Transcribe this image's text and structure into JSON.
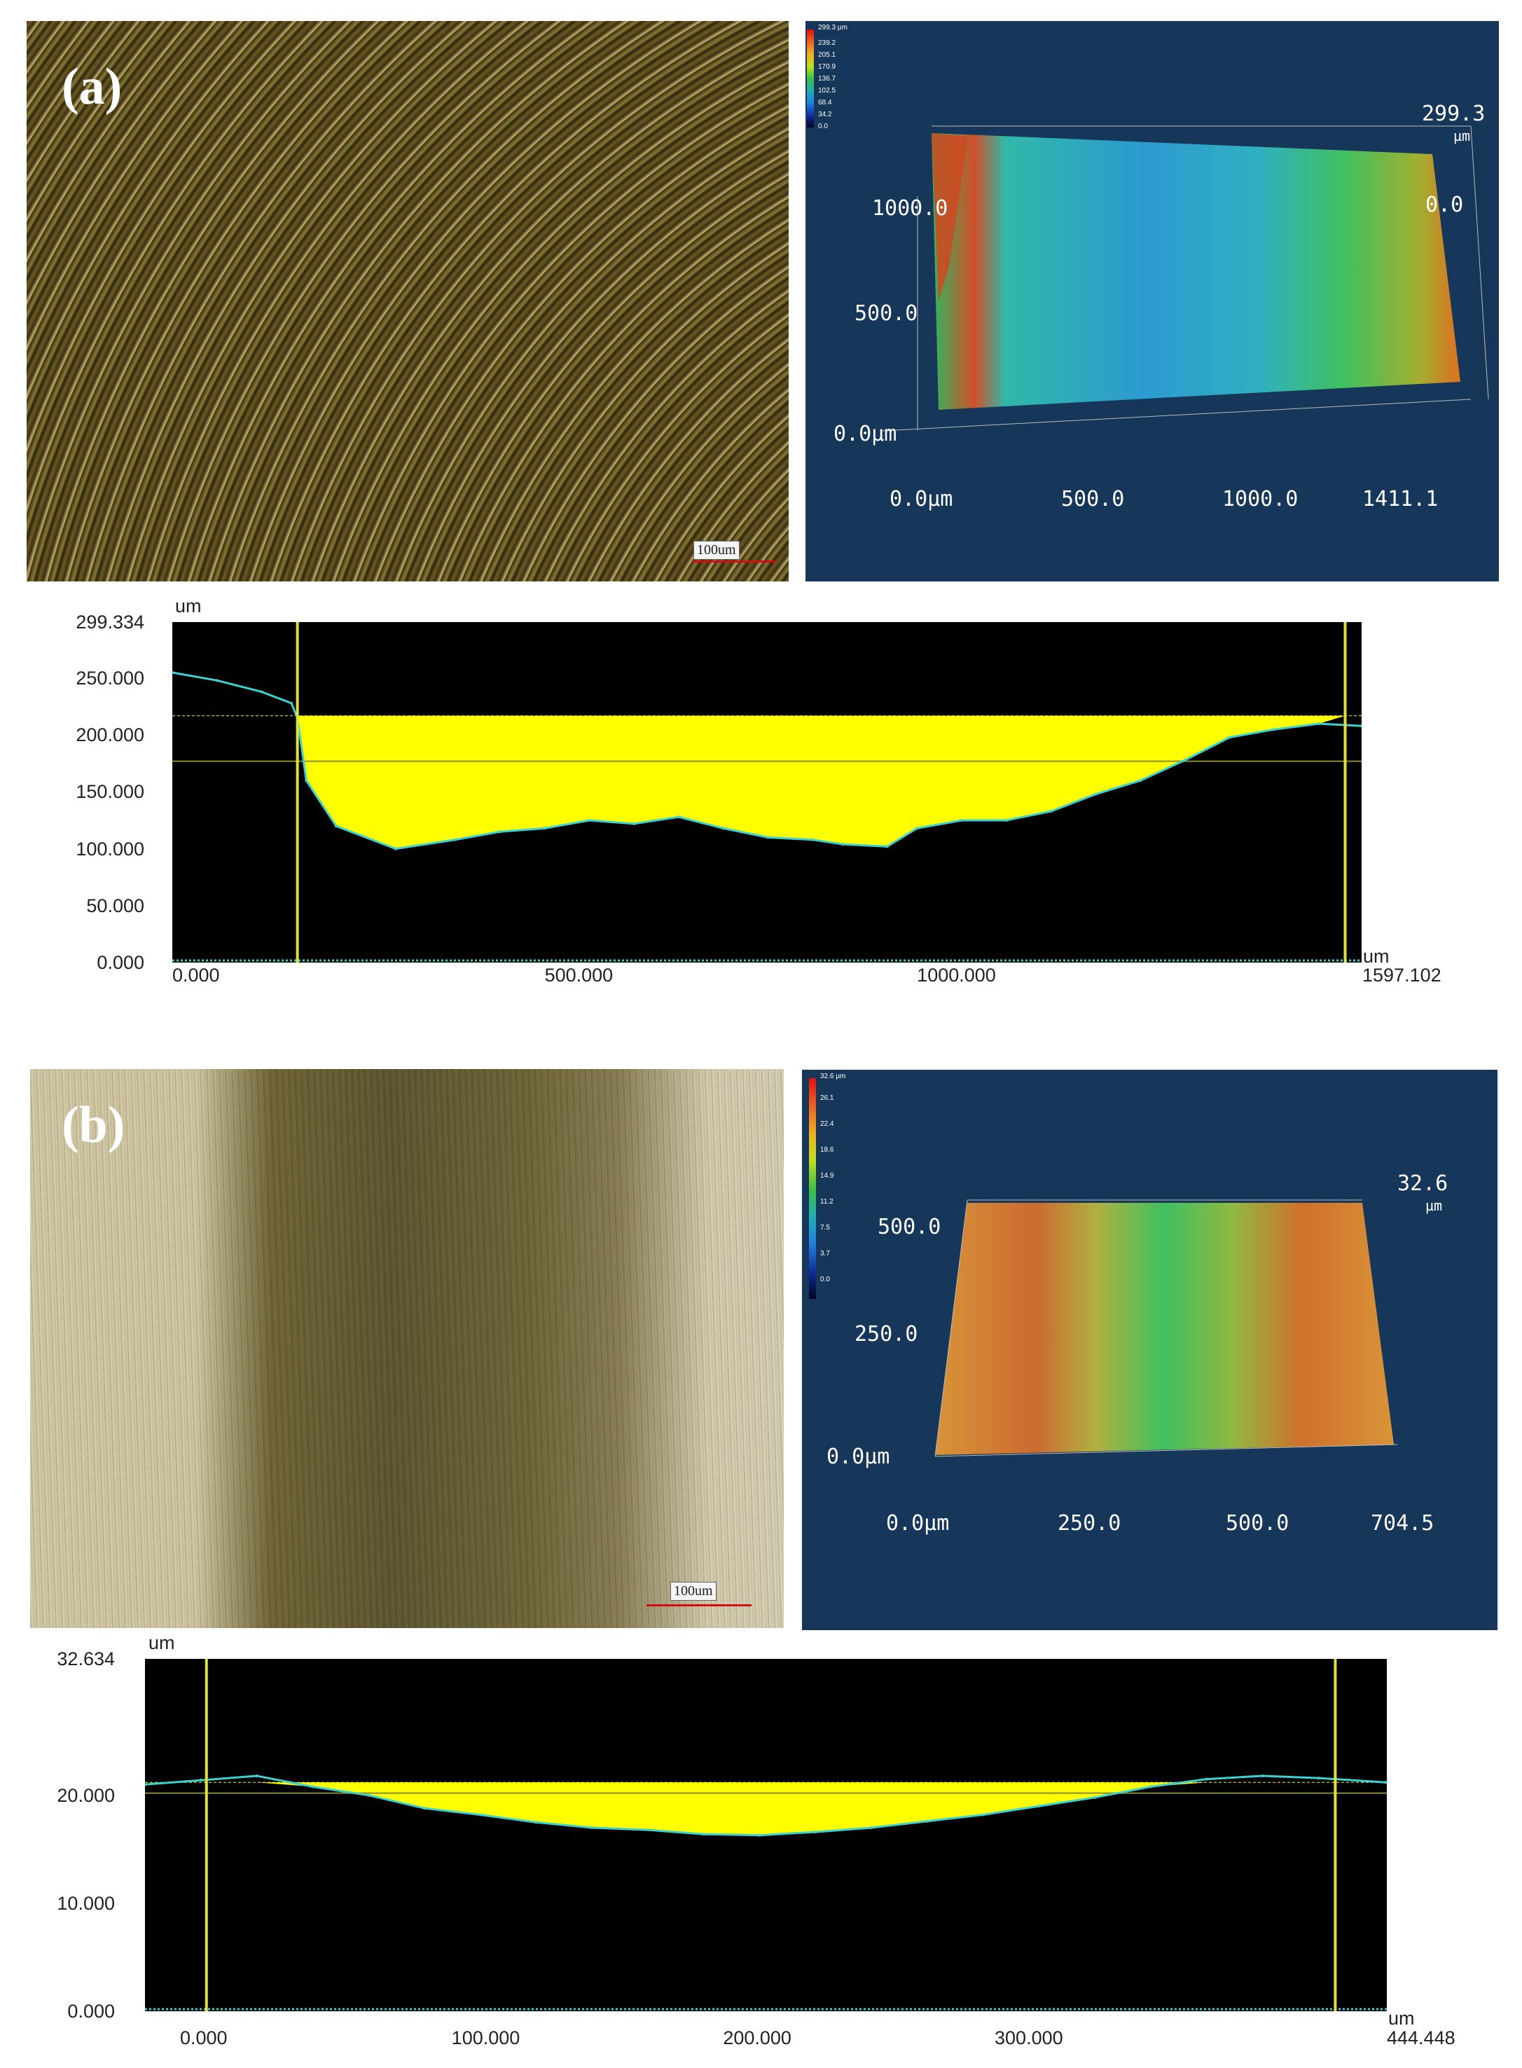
{
  "panel_a": {
    "label": "(a)",
    "micrograph": {
      "scale_bar": "100um"
    },
    "surface_3d": {
      "colorbar_title": "299.3 µm",
      "colorbar_ticks": [
        "239.2",
        "205.1",
        "170.9",
        "136.7",
        "102.5",
        "68.4",
        "34.2",
        "0.0"
      ],
      "z_max": "299.3",
      "z_unit": "µm",
      "z_min": "0.0",
      "y_labels": [
        "1000.0",
        "500.0",
        "0.0µm"
      ],
      "x_labels": [
        "0.0µm",
        "500.0",
        "1000.0",
        "1411.1"
      ]
    },
    "profile": {
      "y_unit": "um",
      "y_ticks": [
        "299.334",
        "250.000",
        "200.000",
        "150.000",
        "100.000",
        "50.000",
        "0.000"
      ],
      "x_ticks": [
        "0.000",
        "500.000",
        "1000.000",
        "1597.102"
      ],
      "x_unit": "um"
    }
  },
  "panel_b": {
    "label": "(b)",
    "micrograph": {
      "scale_bar": "100um"
    },
    "surface_3d": {
      "colorbar_title": "32.6 µm",
      "colorbar_ticks": [
        "26.1",
        "22.4",
        "18.6",
        "14.9",
        "11.2",
        "7.5",
        "3.7",
        "0.0"
      ],
      "z_max": "32.6",
      "z_unit": "µm",
      "y_labels": [
        "500.0",
        "250.0",
        "0.0µm"
      ],
      "x_labels": [
        "0.0µm",
        "250.0",
        "500.0",
        "704.5"
      ]
    },
    "profile": {
      "y_unit": "um",
      "y_ticks": [
        "32.634",
        "20.000",
        "10.000",
        "0.000"
      ],
      "x_ticks": [
        "0.000",
        "100.000",
        "200.000",
        "300.000",
        "444.448"
      ],
      "x_unit": "um"
    }
  },
  "colors": {
    "fill": "#ffff00",
    "profile_line": "#3fd0d0",
    "marker": "#e0e040",
    "plot_bg": "#000000",
    "panel_3d_bg": "#17375a"
  },
  "chart_data": [
    {
      "type": "area",
      "ylabel": "um",
      "xlabel": "um",
      "xlim": [
        0,
        1597.102
      ],
      "ylim": [
        0,
        299.334
      ],
      "reference_level": 217,
      "mean_line": 177,
      "cursors": [
        168,
        1575
      ],
      "x": [
        0,
        60,
        120,
        160,
        168,
        180,
        220,
        300,
        380,
        440,
        500,
        560,
        620,
        680,
        740,
        800,
        860,
        900,
        960,
        1000,
        1060,
        1120,
        1180,
        1240,
        1300,
        1360,
        1420,
        1480,
        1540,
        1597
      ],
      "y": [
        255,
        248,
        238,
        228,
        215,
        160,
        120,
        100,
        108,
        115,
        118,
        125,
        122,
        128,
        118,
        110,
        108,
        104,
        102,
        118,
        125,
        125,
        133,
        148,
        160,
        178,
        198,
        205,
        210,
        208
      ]
    },
    {
      "type": "area",
      "ylabel": "um",
      "xlabel": "um",
      "xlim": [
        0,
        444.448
      ],
      "ylim": [
        0,
        32.634
      ],
      "reference_level": 21.2,
      "mean_line": 20.2,
      "cursors": [
        22,
        426
      ],
      "x": [
        0,
        20,
        40,
        60,
        80,
        100,
        120,
        140,
        160,
        180,
        200,
        220,
        240,
        260,
        280,
        300,
        320,
        340,
        360,
        380,
        400,
        420,
        444
      ],
      "y": [
        21.0,
        21.4,
        21.8,
        20.8,
        20.0,
        18.8,
        18.2,
        17.5,
        17.0,
        16.8,
        16.4,
        16.3,
        16.6,
        17.0,
        17.6,
        18.2,
        19.0,
        19.8,
        20.8,
        21.5,
        21.8,
        21.6,
        21.2
      ]
    }
  ]
}
